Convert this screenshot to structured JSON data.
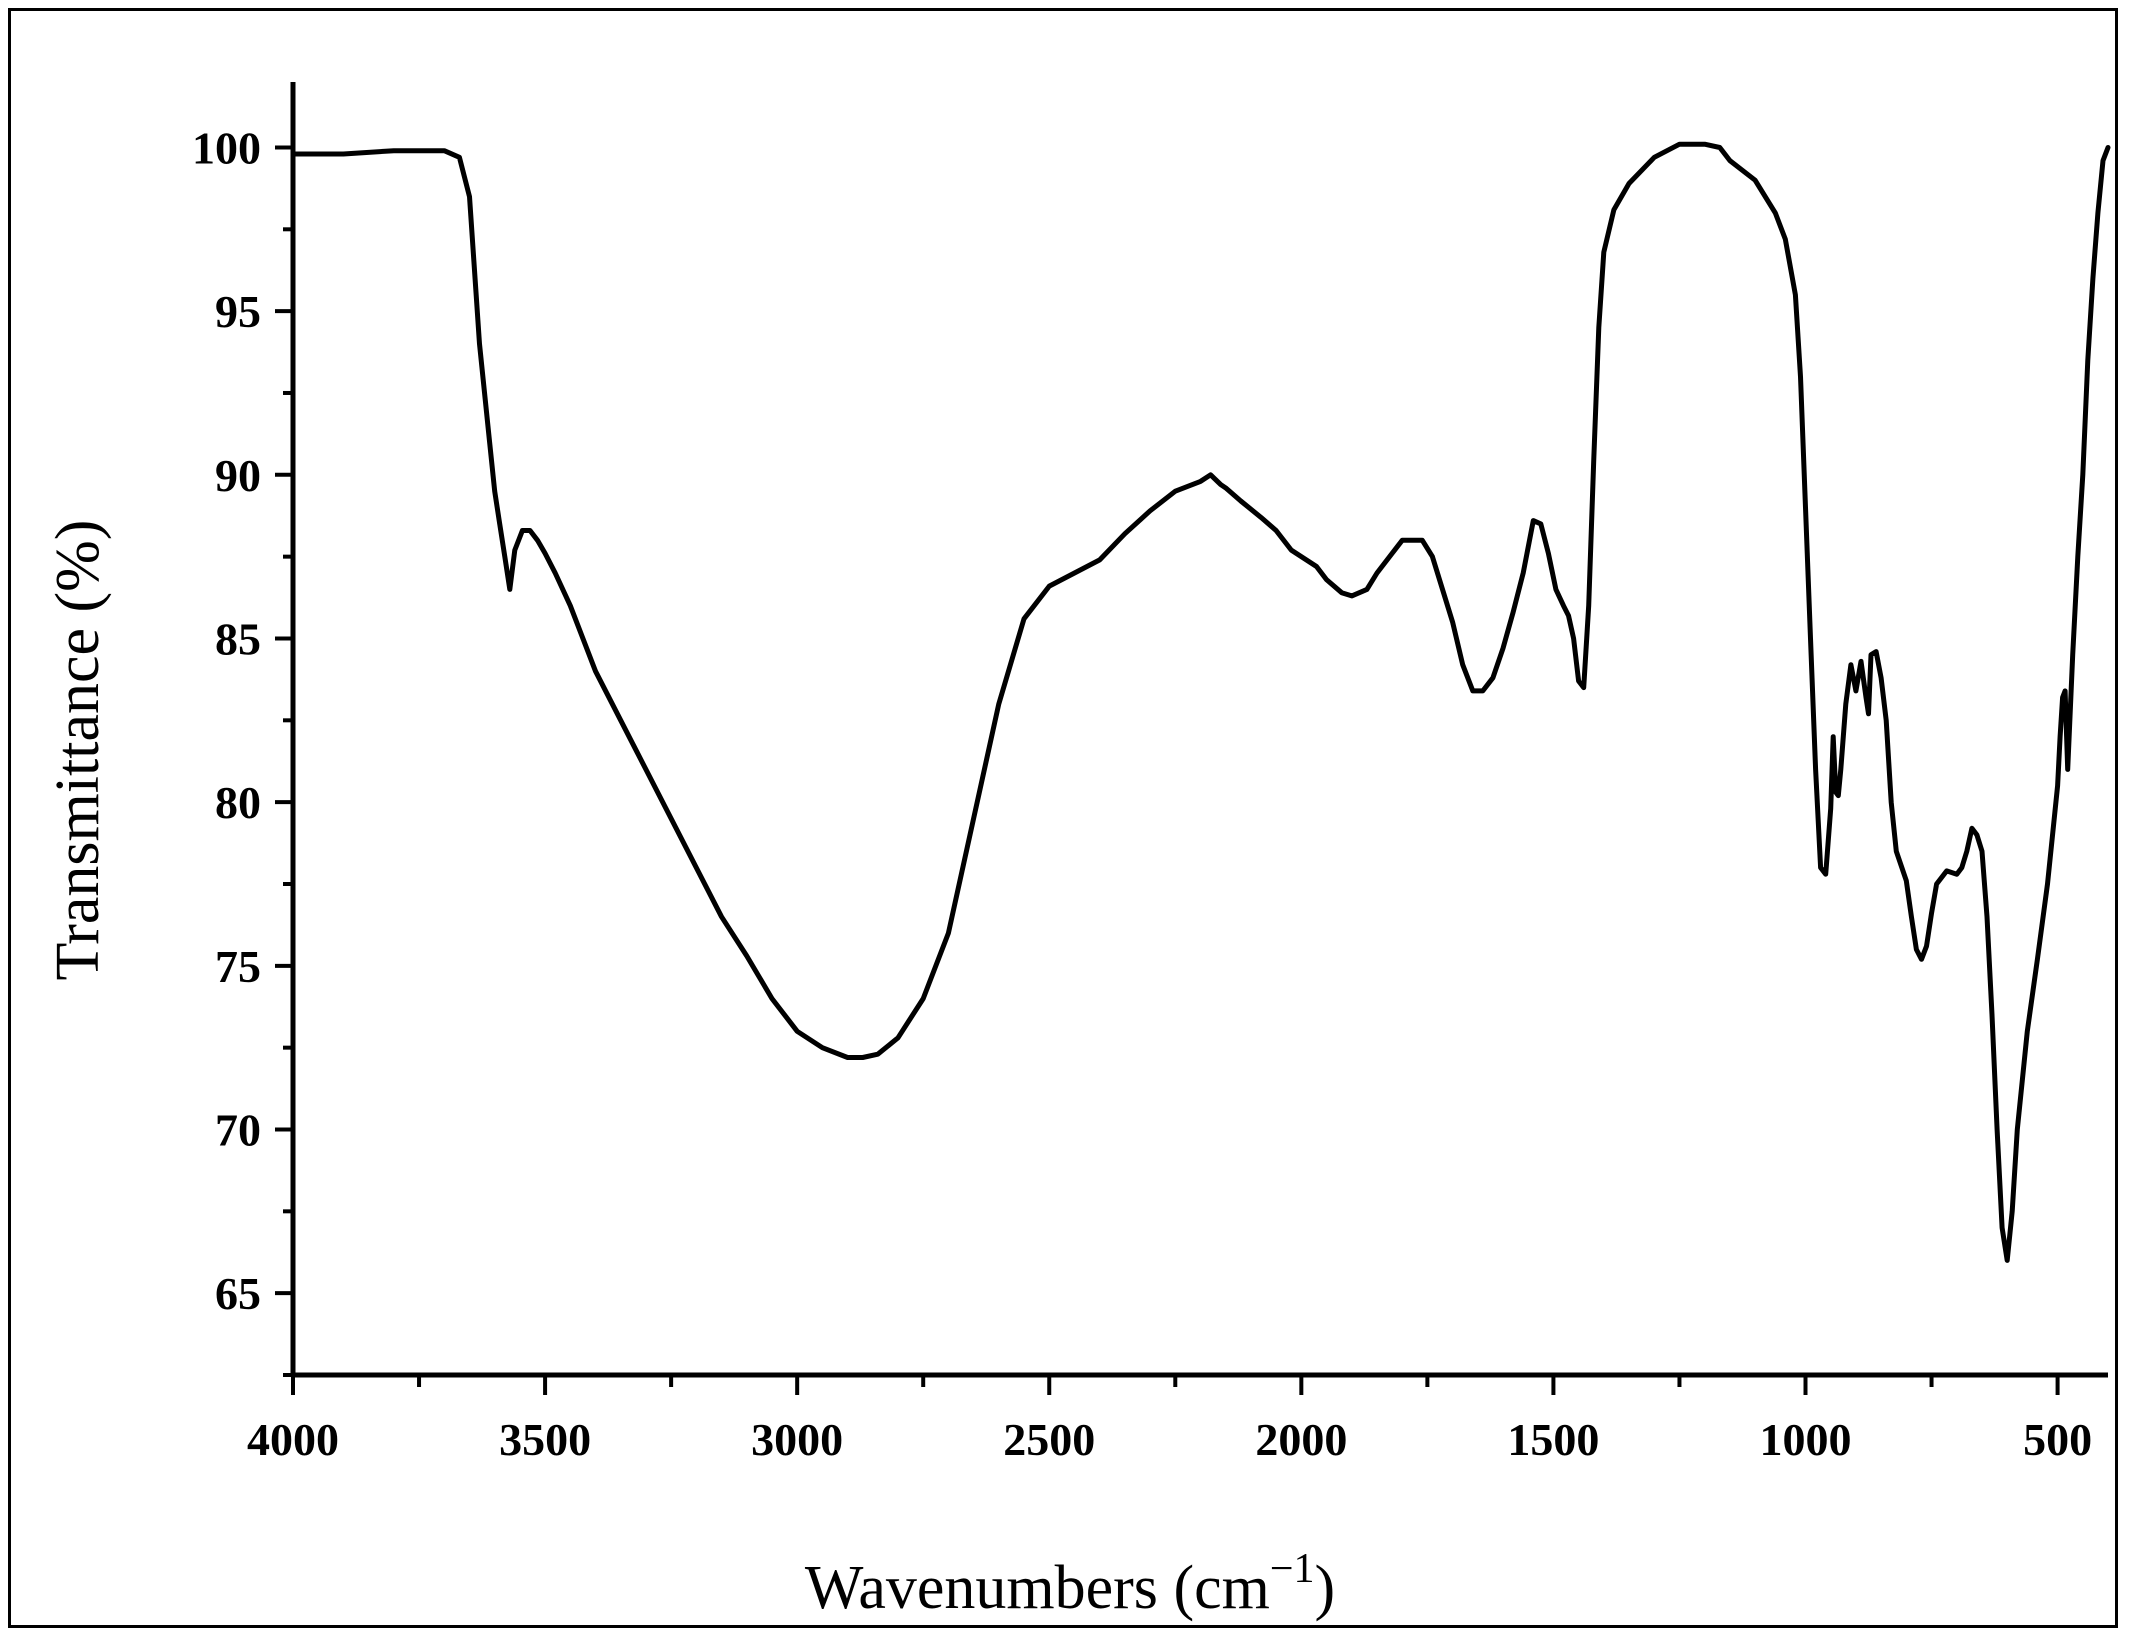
{
  "chart_data": {
    "type": "line",
    "xlabel": "Wavenumbers (cm",
    "xlabel_sup": "−1",
    "xlabel_close": ")",
    "ylabel": "Transmittance (%)",
    "xlim": [
      4000,
      400
    ],
    "ylim": [
      62.5,
      102
    ],
    "x_reversed": true,
    "x_ticks": [
      4000,
      3500,
      3000,
      2500,
      2000,
      1500,
      1000,
      500
    ],
    "y_ticks": [
      65,
      70,
      75,
      80,
      85,
      90,
      95,
      100
    ],
    "grid": false,
    "line_color": "#000000",
    "series": [
      {
        "x": [
          4000,
          3900,
          3800,
          3700,
          3670,
          3650,
          3630,
          3610,
          3600,
          3590,
          3580,
          3570,
          3560,
          3545,
          3530,
          3515,
          3500,
          3480,
          3450,
          3400,
          3350,
          3300,
          3250,
          3200,
          3150,
          3100,
          3050,
          3000,
          2950,
          2900,
          2870,
          2840,
          2800,
          2750,
          2700,
          2650,
          2600,
          2550,
          2500,
          2450,
          2400,
          2350,
          2300,
          2250,
          2200,
          2180,
          2160,
          2150,
          2120,
          2080,
          2050,
          2020,
          2000,
          1970,
          1950,
          1920,
          1900,
          1870,
          1850,
          1820,
          1800,
          1780,
          1760,
          1740,
          1720,
          1700,
          1680,
          1660,
          1640,
          1620,
          1600,
          1580,
          1560,
          1540,
          1525,
          1510,
          1495,
          1480,
          1470,
          1460,
          1450,
          1440,
          1430,
          1420,
          1410,
          1400,
          1380,
          1350,
          1300,
          1250,
          1200,
          1170,
          1150,
          1100,
          1060,
          1040,
          1020,
          1010,
          1000,
          990,
          980,
          970,
          960,
          950,
          945,
          940,
          935,
          930,
          920,
          910,
          900,
          890,
          880,
          875,
          870,
          860,
          850,
          840,
          830,
          820,
          800,
          790,
          780,
          770,
          760,
          750,
          740,
          720,
          700,
          690,
          680,
          670,
          660,
          650,
          640,
          630,
          620,
          610,
          600,
          590,
          580,
          570,
          560,
          540,
          520,
          500,
          495,
          490,
          485,
          480,
          470,
          460,
          450,
          440,
          430,
          420,
          410,
          400
        ],
        "y": [
          99.8,
          99.8,
          99.9,
          99.9,
          99.7,
          98.5,
          94,
          91,
          89.5,
          88.5,
          87.5,
          86.5,
          87.7,
          88.3,
          88.3,
          88,
          87.6,
          87,
          86,
          84,
          82.5,
          81,
          79.5,
          78,
          76.5,
          75.3,
          74,
          73,
          72.5,
          72.2,
          72.2,
          72.3,
          72.8,
          74,
          76,
          79.5,
          83,
          85.6,
          86.6,
          87,
          87.4,
          88.2,
          88.9,
          89.5,
          89.8,
          90,
          89.7,
          89.6,
          89.2,
          88.7,
          88.3,
          87.7,
          87.5,
          87.2,
          86.8,
          86.4,
          86.3,
          86.5,
          87,
          87.6,
          88,
          88,
          88,
          87.5,
          86.5,
          85.5,
          84.2,
          83.4,
          83.4,
          83.8,
          84.7,
          85.8,
          87,
          88.6,
          88.5,
          87.6,
          86.5,
          86,
          85.7,
          85,
          83.7,
          83.5,
          86,
          90.5,
          94.5,
          96.8,
          98.1,
          98.9,
          99.7,
          100.1,
          100.1,
          100,
          99.6,
          99,
          98,
          97.2,
          95.5,
          93,
          89,
          85,
          81,
          78,
          77.8,
          79.8,
          82,
          80.3,
          80.2,
          81,
          83,
          84.2,
          83.4,
          84.3,
          83.2,
          82.7,
          84.5,
          84.6,
          83.8,
          82.5,
          80,
          78.5,
          77.6,
          76.5,
          75.5,
          75.2,
          75.6,
          76.6,
          77.5,
          77.9,
          77.8,
          78,
          78.5,
          79.2,
          79,
          78.5,
          76.5,
          73.5,
          70,
          67,
          66,
          67.5,
          70,
          71.5,
          73,
          75.2,
          77.5,
          80.5,
          82,
          83.2,
          83.4,
          81,
          84.5,
          87.5,
          90,
          93.5,
          96,
          98,
          99.6,
          100
        ]
      }
    ]
  }
}
